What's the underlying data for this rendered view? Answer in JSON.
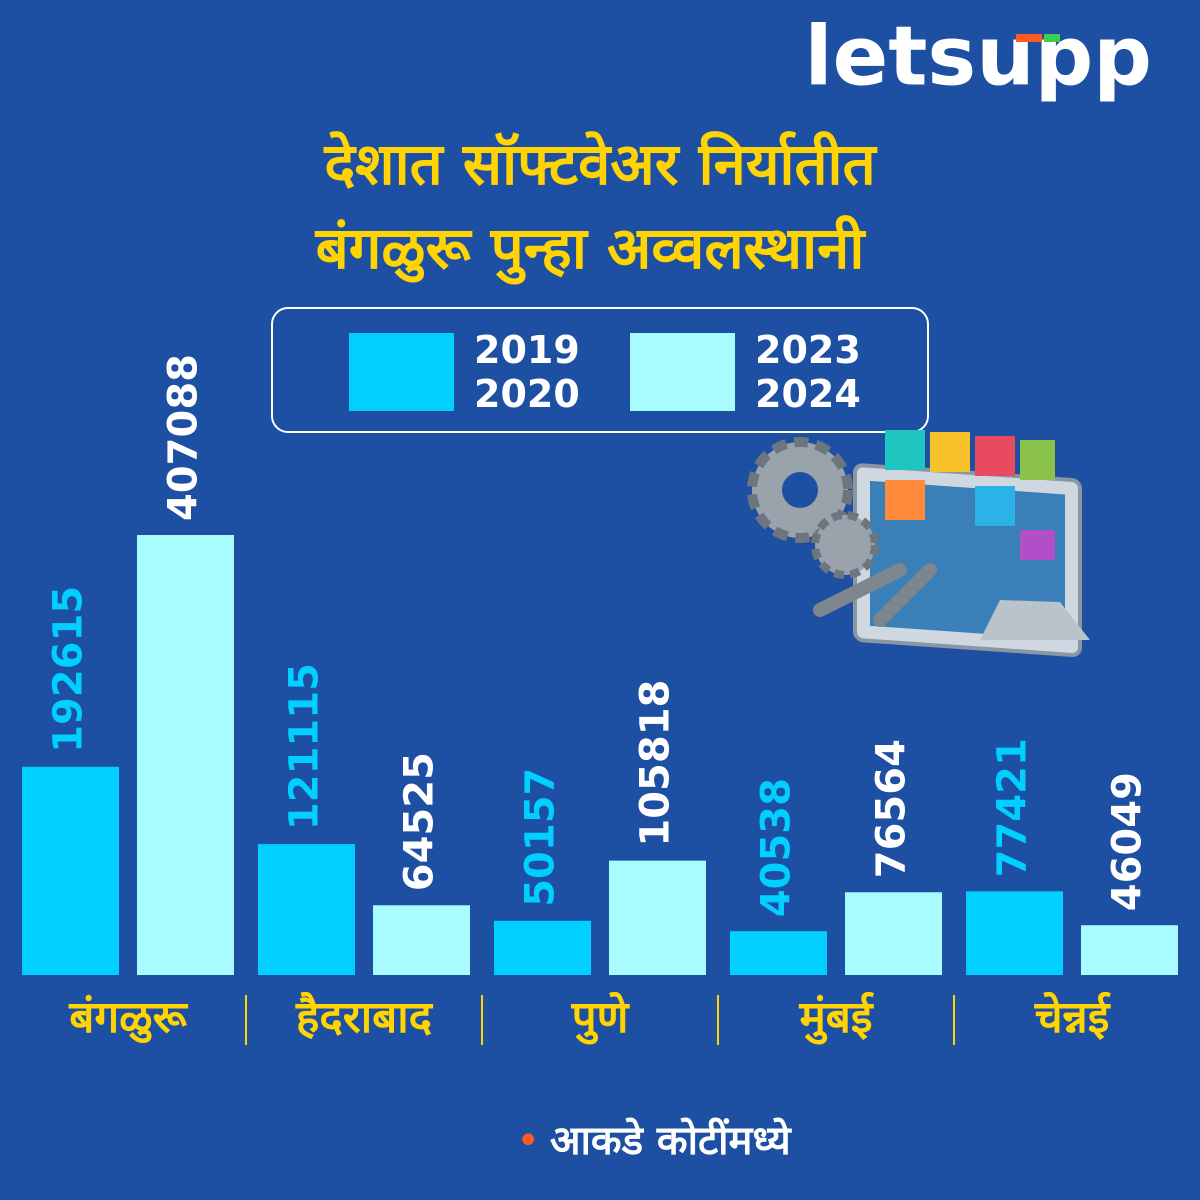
{
  "brand": "letsupp",
  "chart_data": {
    "type": "bar",
    "title": [
      "देशात सॉफ्टवेअर निर्यातीत",
      "बंगळुरू पुन्हा अव्वलस्थानी"
    ],
    "categories": [
      "बंगळुरू",
      "हैदराबाद",
      "पुणे",
      "मुंबई",
      "चेन्नई"
    ],
    "series": [
      {
        "name": "2019 2020",
        "color": "#00cfff",
        "label_color": "#00cfff",
        "values": [
          192615,
          121115,
          50157,
          40538,
          77421
        ]
      },
      {
        "name": "2023 2024",
        "color": "#a8fbff",
        "label_color": "#ffffff",
        "values": [
          407088,
          64525,
          105818,
          76564,
          46049
        ]
      }
    ],
    "note": "आकडे कोटींमध्ये"
  }
}
